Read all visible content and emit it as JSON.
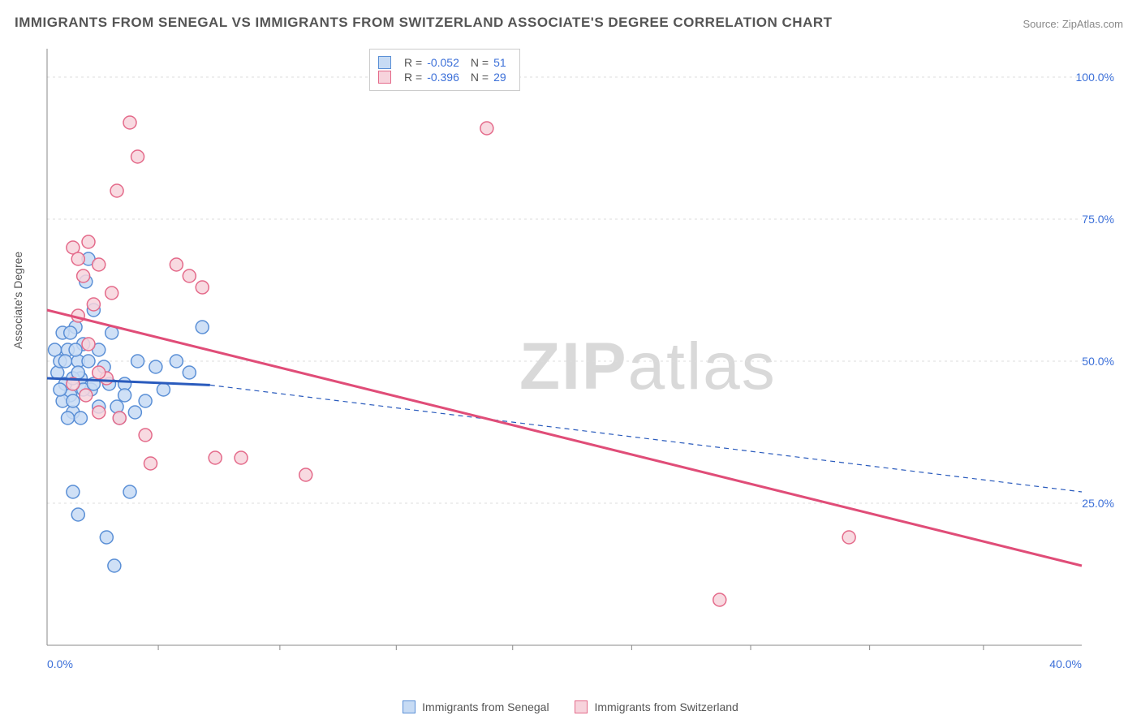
{
  "title": "IMMIGRANTS FROM SENEGAL VS IMMIGRANTS FROM SWITZERLAND ASSOCIATE'S DEGREE CORRELATION CHART",
  "source": "Source: ZipAtlas.com",
  "y_axis_label": "Associate's Degree",
  "watermark_bold": "ZIP",
  "watermark_thin": "atlas",
  "chart": {
    "type": "scatter",
    "xlim": [
      0,
      40
    ],
    "ylim": [
      0,
      105
    ],
    "x_ticks": [
      0,
      40
    ],
    "x_tick_labels": [
      "0.0%",
      "40.0%"
    ],
    "x_minor_ticks": [
      4.3,
      9.0,
      13.5,
      18.0,
      22.6,
      27.2,
      31.8,
      36.2
    ],
    "y_ticks": [
      25,
      50,
      75,
      100
    ],
    "y_tick_labels": [
      "25.0%",
      "50.0%",
      "75.0%",
      "100.0%"
    ],
    "grid_color": "#dddddd",
    "background_color": "#ffffff",
    "axis_color": "#888888",
    "tick_font_size": 14,
    "tick_color": "#3b6fd8",
    "marker_radius": 8,
    "marker_stroke_width": 1.5,
    "trend_line_width": 3,
    "series": [
      {
        "name": "Immigrants from Senegal",
        "fill": "#c7dbf4",
        "stroke": "#5a8fd6",
        "r_label": "R =",
        "r_value": "-0.052",
        "n_label": "N =",
        "n_value": "51",
        "points": [
          [
            0.3,
            52
          ],
          [
            0.4,
            48
          ],
          [
            0.5,
            50
          ],
          [
            0.6,
            55
          ],
          [
            0.7,
            46
          ],
          [
            0.8,
            52
          ],
          [
            0.9,
            44
          ],
          [
            1.0,
            41
          ],
          [
            1.1,
            56
          ],
          [
            1.2,
            50
          ],
          [
            1.3,
            47
          ],
          [
            1.4,
            53
          ],
          [
            1.5,
            64
          ],
          [
            1.6,
            68
          ],
          [
            1.7,
            45
          ],
          [
            1.8,
            59
          ],
          [
            2.0,
            42
          ],
          [
            2.2,
            49
          ],
          [
            2.5,
            55
          ],
          [
            2.8,
            40
          ],
          [
            3.0,
            46
          ],
          [
            3.2,
            27
          ],
          [
            3.5,
            50
          ],
          [
            0.6,
            43
          ],
          [
            0.8,
            40
          ],
          [
            1.0,
            47
          ],
          [
            1.1,
            52
          ],
          [
            1.3,
            40
          ],
          [
            1.4,
            45
          ],
          [
            1.6,
            50
          ],
          [
            0.5,
            45
          ],
          [
            0.7,
            50
          ],
          [
            0.9,
            55
          ],
          [
            1.0,
            43
          ],
          [
            1.2,
            48
          ],
          [
            2.3,
            19
          ],
          [
            2.6,
            14
          ],
          [
            1.0,
            27
          ],
          [
            1.2,
            23
          ],
          [
            1.8,
            46
          ],
          [
            2.0,
            52
          ],
          [
            2.4,
            46
          ],
          [
            2.7,
            42
          ],
          [
            3.0,
            44
          ],
          [
            3.4,
            41
          ],
          [
            3.8,
            43
          ],
          [
            4.2,
            49
          ],
          [
            4.5,
            45
          ],
          [
            5.0,
            50
          ],
          [
            5.5,
            48
          ],
          [
            6.0,
            56
          ]
        ],
        "trend": {
          "x1": 0,
          "y1": 47,
          "x2": 6.3,
          "y2": 45.8,
          "ext_x2": 40,
          "ext_y2": 27,
          "dash": "6,5",
          "color": "#2a5bbd"
        }
      },
      {
        "name": "Immigrants from Switzerland",
        "fill": "#f7d3dc",
        "stroke": "#e46a8a",
        "r_label": "R =",
        "r_value": "-0.396",
        "n_label": "N =",
        "n_value": "29",
        "points": [
          [
            1.0,
            70
          ],
          [
            1.2,
            68
          ],
          [
            1.4,
            65
          ],
          [
            1.6,
            71
          ],
          [
            1.8,
            60
          ],
          [
            2.0,
            67
          ],
          [
            2.3,
            47
          ],
          [
            2.5,
            62
          ],
          [
            2.8,
            40
          ],
          [
            1.0,
            46
          ],
          [
            1.5,
            44
          ],
          [
            2.0,
            41
          ],
          [
            2.7,
            80
          ],
          [
            3.2,
            92
          ],
          [
            3.5,
            86
          ],
          [
            3.8,
            37
          ],
          [
            4.0,
            32
          ],
          [
            5.0,
            67
          ],
          [
            5.5,
            65
          ],
          [
            6.0,
            63
          ],
          [
            6.5,
            33
          ],
          [
            7.5,
            33
          ],
          [
            10.0,
            30
          ],
          [
            17.0,
            91
          ],
          [
            26.0,
            8
          ],
          [
            31.0,
            19
          ],
          [
            1.2,
            58
          ],
          [
            1.6,
            53
          ],
          [
            2.0,
            48
          ]
        ],
        "trend": {
          "x1": 0,
          "y1": 59,
          "x2": 40,
          "y2": 14,
          "color": "#e04d78"
        }
      }
    ]
  },
  "bottom_legend_series1": "Immigrants from Senegal",
  "bottom_legend_series2": "Immigrants from Switzerland"
}
